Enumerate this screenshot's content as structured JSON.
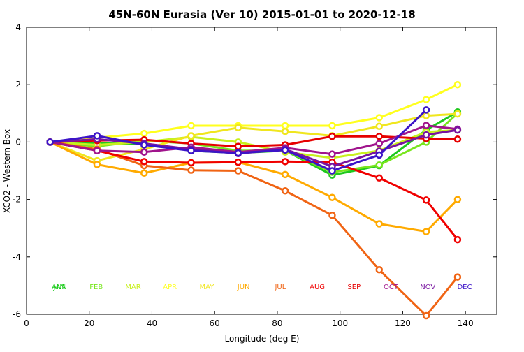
{
  "chart_data": {
    "type": "line",
    "title": "45N-60N Eurasia (Ver 10)   2015-01-01 to 2020-12-18",
    "xlabel": "Longitude (deg E)",
    "ylabel": "XCO2 - Western Box",
    "xlim": [
      0,
      150
    ],
    "ylim": [
      -6,
      4
    ],
    "xticks": [
      0,
      20,
      40,
      60,
      80,
      100,
      120,
      140
    ],
    "yticks": [
      -6,
      -4,
      -2,
      0,
      2,
      4
    ],
    "x": [
      7.5,
      22.5,
      37.5,
      52.5,
      67.5,
      82.5,
      97.5,
      112.5,
      127.5,
      137.5
    ],
    "series": [
      {
        "name": "JAN",
        "color": "#1ec81e",
        "values": [
          0,
          -0.05,
          -0.05,
          -0.3,
          -0.38,
          -0.3,
          -1.15,
          -0.82,
          0.42,
          1.05
        ]
      },
      {
        "name": "FEB",
        "color": "#78e61e",
        "values": [
          0,
          -0.15,
          0.05,
          -0.05,
          -0.3,
          -0.3,
          -1.05,
          -0.8,
          0.0,
          1.0
        ]
      },
      {
        "name": "MAR",
        "color": "#c8f01e",
        "values": [
          0,
          -0.1,
          0.0,
          0.18,
          0.0,
          -0.35,
          -0.55,
          -0.3,
          0.35,
          0.42
        ]
      },
      {
        "name": "APR",
        "color": "#ffff1e",
        "values": [
          0,
          0.15,
          0.3,
          0.57,
          0.57,
          0.57,
          0.57,
          0.85,
          1.48,
          2.0
        ]
      },
      {
        "name": "MAY",
        "color": "#f0e61e",
        "values": [
          0,
          -0.65,
          -0.25,
          0.22,
          0.5,
          0.37,
          0.22,
          0.55,
          0.92,
          0.98
        ]
      },
      {
        "name": "JUN",
        "color": "#ffaa00",
        "values": [
          0,
          -0.78,
          -1.08,
          -0.72,
          -0.7,
          -1.13,
          -1.93,
          -2.85,
          -3.12,
          -2.0
        ]
      },
      {
        "name": "JUL",
        "color": "#f06414",
        "values": [
          0,
          -0.25,
          -0.82,
          -0.98,
          -1.0,
          -1.7,
          -2.55,
          -4.45,
          -6.05,
          -4.7
        ]
      },
      {
        "name": "AUG",
        "color": "#f00000",
        "values": [
          0,
          -0.3,
          -0.68,
          -0.72,
          -0.7,
          -0.68,
          -0.7,
          -1.25,
          -2.02,
          -3.4
        ]
      },
      {
        "name": "SEP",
        "color": "#e60000",
        "values": [
          0,
          0.05,
          0.08,
          -0.05,
          -0.15,
          -0.1,
          0.2,
          0.2,
          0.12,
          0.1
        ]
      },
      {
        "name": "OCT",
        "color": "#a0148c",
        "values": [
          0,
          -0.3,
          -0.35,
          -0.18,
          -0.35,
          -0.2,
          -0.42,
          -0.05,
          0.58,
          0.45
        ]
      },
      {
        "name": "NOV",
        "color": "#7814a0",
        "values": [
          0,
          0.1,
          -0.05,
          -0.25,
          -0.4,
          -0.25,
          -0.85,
          -0.32,
          0.25,
          0.42
        ]
      },
      {
        "name": "DEC",
        "color": "#3c14c8",
        "values": [
          0,
          0.22,
          -0.1,
          -0.3,
          -0.38,
          -0.28,
          -1.0,
          -0.45,
          1.12,
          null
        ]
      }
    ],
    "annotations": [
      {
        "label": "ANN",
        "color": "#00c800"
      },
      {
        "label": "JAN",
        "color": "#1ec81e"
      },
      {
        "label": "FEB",
        "color": "#78e61e"
      },
      {
        "label": "MAR",
        "color": "#c8f01e"
      },
      {
        "label": "APR",
        "color": "#ffff1e"
      },
      {
        "label": "MAY",
        "color": "#f0e61e"
      },
      {
        "label": "JUN",
        "color": "#ffaa00"
      },
      {
        "label": "JUL",
        "color": "#f06414"
      },
      {
        "label": "AUG",
        "color": "#f00000"
      },
      {
        "label": "SEP",
        "color": "#e60000"
      },
      {
        "label": "OCT",
        "color": "#a0148c"
      },
      {
        "label": "NOV",
        "color": "#7814a0"
      },
      {
        "label": "DEC",
        "color": "#3c14c8"
      }
    ]
  }
}
